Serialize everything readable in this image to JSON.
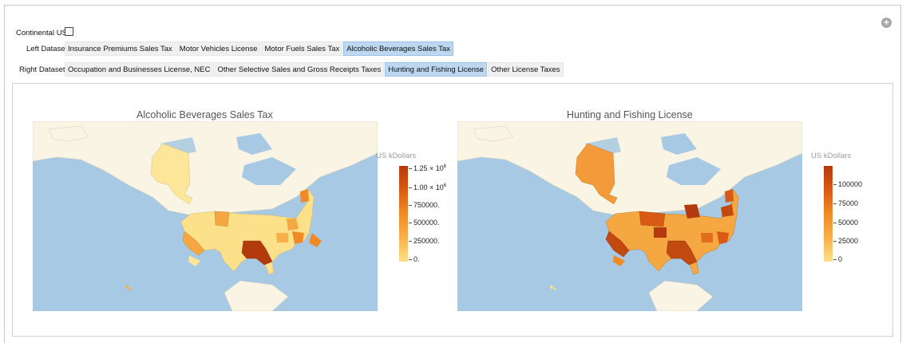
{
  "controls": {
    "continental_label": "Continental US",
    "continental_checked": false,
    "left_label": "Left Dataset",
    "right_label": "Right Dataset",
    "left_options": [
      "Insurance Premiums Sales Tax",
      "Motor Vehicles License",
      "Motor Fuels Sales Tax",
      "Alcoholic Beverages Sales Tax"
    ],
    "left_selected": "Alcoholic Beverages Sales Tax",
    "right_options": [
      "Occupation and Businesses License, NEC",
      "Other Selective Sales and Gross Receipts Taxes",
      "Hunting and Fishing License",
      "Other License Taxes"
    ],
    "right_selected": "Hunting and Fishing License"
  },
  "left_map": {
    "title": "Alcoholic Beverages Sales Tax",
    "legend_title": "US kDollars",
    "legend_ticks": [
      "1.25 × 10",
      "1.00 × 10",
      "750000.",
      "500000.",
      "250000.",
      "0."
    ],
    "legend_exponent": "6"
  },
  "right_map": {
    "title": "Hunting and Fishing License",
    "legend_title": "US kDollars",
    "legend_ticks": [
      "100000",
      "75000",
      "50000",
      "25000",
      "0"
    ]
  },
  "colors": {
    "ocean": "#a7c9e3",
    "land": "#f9f4e4",
    "low": "#fde08a",
    "high": "#b33a0c",
    "selected": "#bcd7ef"
  }
}
